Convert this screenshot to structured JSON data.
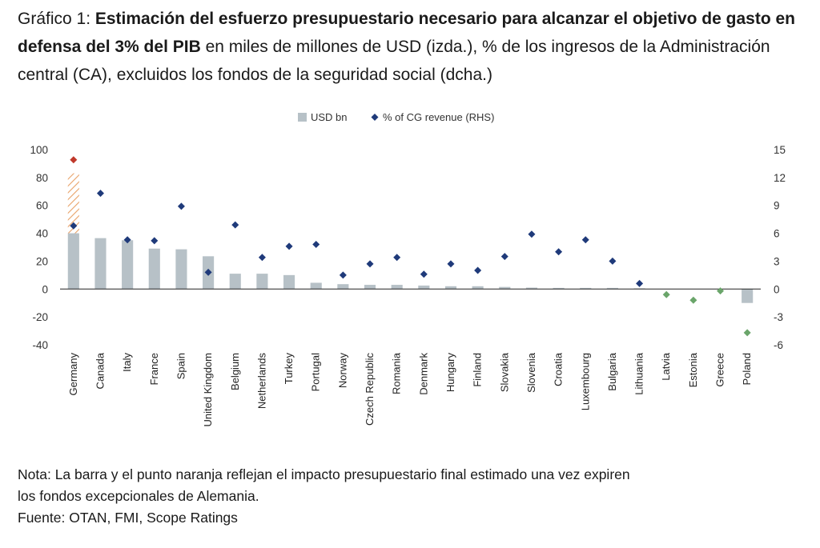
{
  "title": {
    "prefix": "Gráfico 1: ",
    "bold": "Estimación del esfuerzo presupuestario necesario para alcanzar el objetivo de gasto en defensa del 3% del PIB",
    "rest": " en miles de millones de USD (izda.), % de los ingresos de la Administración central (CA), excluidos los fondos de la seguridad social (dcha.)"
  },
  "notes": {
    "line1": "Nota: La barra y el punto naranja reflejan el impacto presupuestario final estimado una vez expiren",
    "line2": "los fondos excepcionales de Alemania.",
    "source": "Fuente: OTAN, FMI, Scope Ratings"
  },
  "colors": {
    "bar": "#b7c1c7",
    "dot": "#1f3a7a",
    "dot_negative": "#6aa56a",
    "dot_highlight": "#c0392b",
    "hatch": "#e8a36a"
  },
  "chart_data": {
    "type": "bar",
    "categories": [
      "Germany",
      "Canada",
      "Italy",
      "France",
      "Spain",
      "United Kingdom",
      "Belgium",
      "Netherlands",
      "Turkey",
      "Portugal",
      "Norway",
      "Czech Republic",
      "Romania",
      "Denmark",
      "Hungary",
      "Finland",
      "Slovakia",
      "Slovenia",
      "Croatia",
      "Luxembourg",
      "Bulgaria",
      "Lithuania",
      "Latvia",
      "Estonia",
      "Greece",
      "Poland"
    ],
    "series": [
      {
        "name": "USD bn",
        "axis": "left",
        "kind": "bar",
        "values": [
          40,
          36.5,
          35,
          29,
          28.5,
          23.5,
          11,
          11,
          10,
          4.5,
          3.5,
          3,
          3,
          2.5,
          2,
          2,
          1.5,
          1,
          0.8,
          0.8,
          0.8,
          0.5,
          0,
          0,
          0,
          -10
        ]
      },
      {
        "name": "% of CG revenue (RHS)",
        "axis": "right",
        "kind": "marker",
        "values": [
          6.8,
          10.3,
          5.3,
          5.2,
          8.9,
          1.8,
          6.9,
          3.4,
          4.6,
          4.8,
          1.5,
          2.7,
          3.4,
          1.6,
          2.7,
          2.0,
          3.5,
          5.9,
          4.0,
          5.3,
          3.0,
          0.6,
          -0.6,
          -1.2,
          -0.2,
          -4.7
        ]
      }
    ],
    "germany_final_estimate": {
      "bar": 83,
      "dot_rhs": 13.9
    },
    "y_left": {
      "lim": [
        -40,
        100
      ],
      "ticks": [
        -40,
        -20,
        0,
        20,
        40,
        60,
        80,
        100
      ]
    },
    "y_right": {
      "lim": [
        -6,
        15
      ],
      "ticks": [
        -6,
        -3,
        0,
        3,
        6,
        9,
        12,
        15
      ]
    },
    "legend": {
      "placement": "top-center",
      "items": [
        "USD bn",
        "% of CG revenue (RHS)"
      ]
    },
    "grid": false
  }
}
